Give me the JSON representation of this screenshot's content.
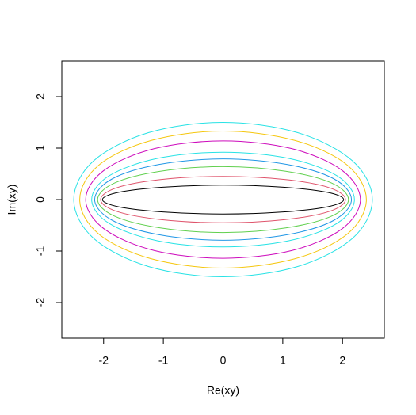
{
  "chart_data": {
    "type": "line",
    "x_label": "Re(xy)",
    "y_label": "Im(xy)",
    "xlim": [
      -2.7,
      2.7
    ],
    "ylim": [
      -2.7,
      2.7
    ],
    "xticks": [
      -2,
      -1,
      0,
      1,
      2
    ],
    "yticks": [
      -2,
      -1,
      0,
      1,
      2
    ],
    "series": [
      {
        "color": "#000000",
        "x": [
          2.02,
          1.75,
          1.01,
          0,
          -1.01,
          -1.75,
          -2.02,
          -1.75,
          -1.01,
          0,
          1.01,
          1.75,
          2.02
        ],
        "values": [
          0,
          0.14,
          0.24,
          0.28,
          0.24,
          0.14,
          0,
          -0.14,
          -0.24,
          -0.28,
          -0.24,
          -0.14,
          0
        ]
      },
      {
        "color": "#DF536B",
        "x": [
          2.05,
          1.78,
          1.03,
          0,
          -1.03,
          -1.78,
          -2.05,
          -1.78,
          -1.03,
          0,
          1.03,
          1.78,
          2.05
        ],
        "values": [
          0,
          0.23,
          0.39,
          0.45,
          0.39,
          0.23,
          0,
          -0.23,
          -0.39,
          -0.45,
          -0.39,
          -0.23,
          0
        ]
      },
      {
        "color": "#61D04F",
        "x": [
          2.1,
          1.82,
          1.05,
          0,
          -1.05,
          -1.82,
          -2.1,
          -1.82,
          -1.05,
          0,
          1.05,
          1.82,
          2.1
        ],
        "values": [
          0,
          0.32,
          0.55,
          0.64,
          0.55,
          0.32,
          0,
          -0.32,
          -0.55,
          -0.64,
          -0.55,
          -0.32,
          0
        ]
      },
      {
        "color": "#2297E6",
        "x": [
          2.15,
          1.86,
          1.08,
          0,
          -1.08,
          -1.86,
          -2.15,
          -1.86,
          -1.08,
          0,
          1.08,
          1.86,
          2.15
        ],
        "values": [
          0,
          0.4,
          0.68,
          0.79,
          0.68,
          0.4,
          0,
          -0.4,
          -0.68,
          -0.79,
          -0.68,
          -0.4,
          0
        ]
      },
      {
        "color": "#28E2E5",
        "x": [
          2.2,
          1.91,
          1.1,
          0,
          -1.1,
          -1.91,
          -2.2,
          -1.91,
          -1.1,
          0,
          1.1,
          1.91,
          2.2
        ],
        "values": [
          0,
          0.46,
          0.8,
          0.92,
          0.8,
          0.46,
          0,
          -0.46,
          -0.8,
          -0.92,
          -0.8,
          -0.46,
          0
        ]
      },
      {
        "color": "#CD0BBC",
        "x": [
          2.3,
          1.99,
          1.15,
          0,
          -1.15,
          -1.99,
          -2.3,
          -1.99,
          -1.15,
          0,
          1.15,
          1.99,
          2.3
        ],
        "values": [
          0,
          0.57,
          0.99,
          1.14,
          0.99,
          0.57,
          0,
          -0.57,
          -0.99,
          -1.14,
          -0.99,
          -0.57,
          0
        ]
      },
      {
        "color": "#F5C710",
        "x": [
          2.4,
          2.08,
          1.2,
          0,
          -1.2,
          -2.08,
          -2.4,
          -2.08,
          -1.2,
          0,
          1.2,
          2.08,
          2.4
        ],
        "values": [
          0,
          0.67,
          1.15,
          1.33,
          1.15,
          0.67,
          0,
          -0.67,
          -1.15,
          -1.33,
          -1.15,
          -0.67,
          0
        ]
      },
      {
        "color": "#28E2E5",
        "x": [
          2.5,
          2.17,
          1.25,
          0,
          -1.25,
          -2.17,
          -2.5,
          -2.17,
          -1.25,
          0,
          1.25,
          2.17,
          2.5
        ],
        "values": [
          0,
          0.75,
          1.3,
          1.5,
          1.3,
          0.75,
          0,
          -0.75,
          -1.3,
          -1.5,
          -1.3,
          -0.75,
          0
        ]
      }
    ]
  }
}
